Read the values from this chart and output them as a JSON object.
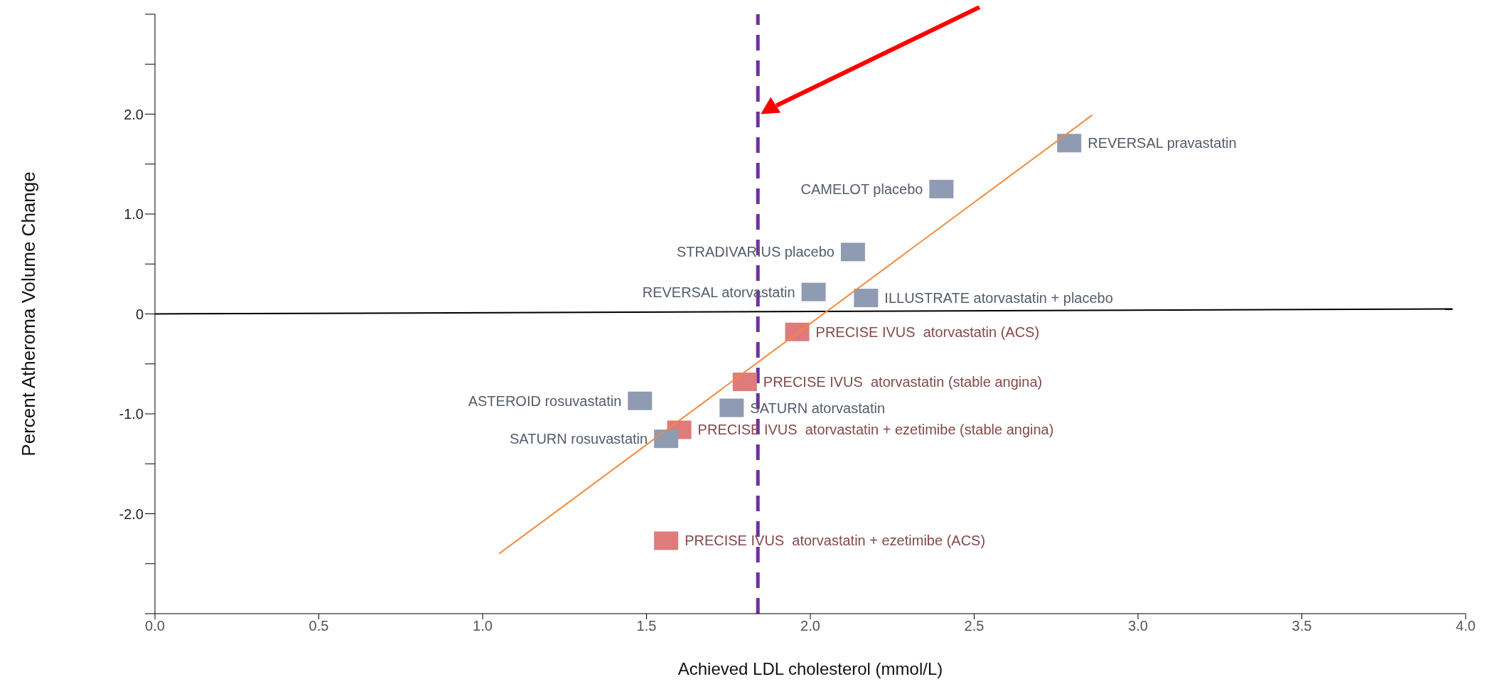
{
  "chart_data": {
    "type": "scatter",
    "xlabel": "Achieved LDL cholesterol (mmol/L)",
    "ylabel": "Percent Atheroma Volume Change",
    "xlim": [
      0,
      4
    ],
    "ylim": [
      -3,
      3
    ],
    "xticks": [
      {
        "value": 0,
        "label": "0.0"
      },
      {
        "value": 0.5,
        "label": "0.5"
      },
      {
        "value": 1,
        "label": "1.0"
      },
      {
        "value": 1.5,
        "label": "1.5"
      },
      {
        "value": 2,
        "label": "2.0"
      },
      {
        "value": 2.5,
        "label": "2.5"
      },
      {
        "value": 3,
        "label": "3.0"
      },
      {
        "value": 3.5,
        "label": "3.5"
      },
      {
        "value": 4,
        "label": "4.0"
      }
    ],
    "yticks": [
      {
        "value": -3,
        "label": null
      },
      {
        "value": -2.5,
        "label": null
      },
      {
        "value": -2,
        "label": "-2.0"
      },
      {
        "value": -1.5,
        "label": null
      },
      {
        "value": -1,
        "label": "-1.0"
      },
      {
        "value": -0.5,
        "label": null
      },
      0,
      {
        "value": 0.5,
        "label": null
      },
      {
        "value": 1,
        "label": "1.0"
      },
      {
        "value": 1.5,
        "label": null
      },
      {
        "value": 2,
        "label": "2.0"
      },
      {
        "value": 2.5,
        "label": null
      },
      {
        "value": 3,
        "label": null
      }
    ],
    "marker": "square",
    "grid": false,
    "legend": false,
    "series": [
      {
        "name": "REVERSAL pravastatin",
        "color": "#8e9bb3",
        "x": [
          2.79
        ],
        "values": [
          1.71
        ]
      },
      {
        "name": "CAMELOT placebo",
        "color": "#8e9bb3",
        "x": [
          2.4
        ],
        "values": [
          1.25
        ]
      },
      {
        "name": "STRADIVARIUS placebo",
        "color": "#8e9bb3",
        "x": [
          2.13
        ],
        "values": [
          0.62
        ]
      },
      {
        "name": "REVERSAL atorvastatin",
        "color": "#8e9bb3",
        "x": [
          2.01
        ],
        "values": [
          0.22
        ]
      },
      {
        "name": "ILLUSTRATE atorvastatin + placebo",
        "color": "#8e9bb3",
        "x": [
          2.17
        ],
        "values": [
          0.16
        ]
      },
      {
        "name": "PRECISE IVUS  atorvastatin (ACS)",
        "color": "#e07b7b",
        "x": [
          1.96
        ],
        "values": [
          -0.18
        ]
      },
      {
        "name": "PRECISE IVUS  atorvastatin (stable angina)",
        "color": "#e07b7b",
        "x": [
          1.8
        ],
        "values": [
          -0.68
        ]
      },
      {
        "name": "ASTEROID rosuvastatin",
        "color": "#8e9bb3",
        "x": [
          1.48
        ],
        "values": [
          -0.87
        ]
      },
      {
        "name": "SATURN atorvastatin",
        "color": "#8e9bb3",
        "x": [
          1.76
        ],
        "values": [
          -0.94
        ]
      },
      {
        "name": "PRECISE IVUS  atorvastatin + ezetimibe (stable angina)",
        "color": "#e07b7b",
        "x": [
          1.6
        ],
        "values": [
          -1.16
        ]
      },
      {
        "name": "SATURN rosuvastatin",
        "color": "#8e9bb3",
        "x": [
          1.56
        ],
        "values": [
          -1.25
        ]
      },
      {
        "name": "PRECISE IVUS  atorvastatin + ezetimibe (ACS)",
        "color": "#e07b7b",
        "x": [
          1.56
        ],
        "values": [
          -2.27
        ]
      },
      {
        "type": "line",
        "marker": "none",
        "color": "#000000",
        "x": [
          0,
          3.96
        ],
        "values": [
          0,
          0.05
        ]
      },
      {
        "type": "line",
        "marker": "none",
        "color": "#f08a3c",
        "x": [
          1.05,
          2.86
        ],
        "values": [
          -2.4,
          1.99
        ]
      }
    ],
    "ref_lines": [
      {
        "axis": "x",
        "value": 1.84,
        "label": null,
        "color": "#7030a0",
        "line_style": "dashed"
      }
    ]
  }
}
